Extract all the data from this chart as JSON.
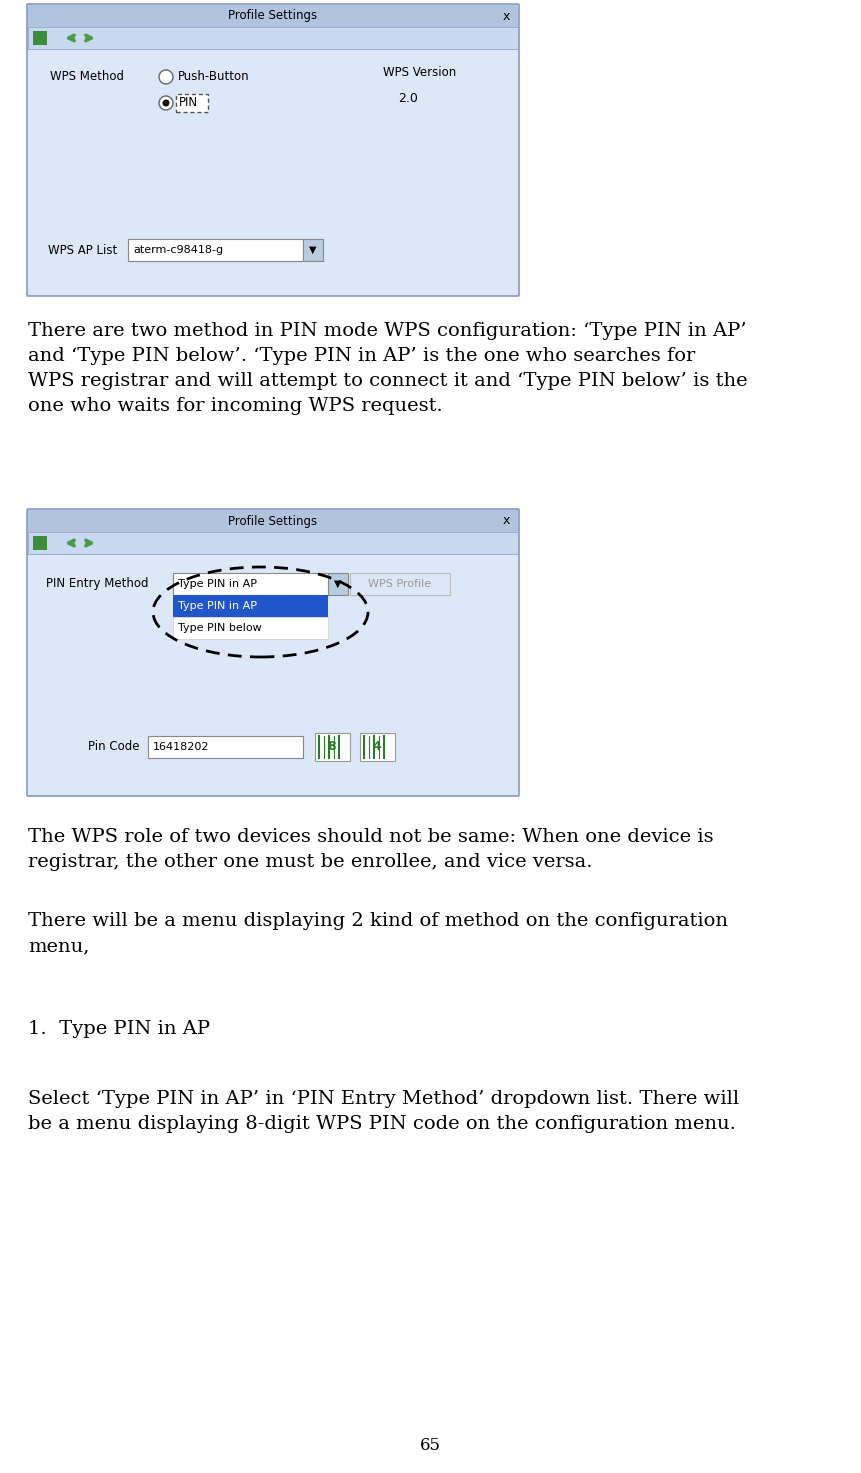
{
  "page_number": "65",
  "bg": "#ffffff",
  "title_bar_color": "#b0c4de",
  "toolbar_color": "#c8d8ee",
  "body_color": "#dce8f8",
  "border_color": "#8899bb",
  "dialog1": {
    "title": "Profile Settings",
    "wps_method_label": "WPS Method",
    "radio1_text": "Push-Button",
    "radio2_text": "PIN",
    "wps_version_label": "WPS Version",
    "wps_version_value": "2.0",
    "ap_list_label": "WPS AP List",
    "ap_list_value": "aterm-c98418-g"
  },
  "dialog2": {
    "title": "Profile Settings",
    "pin_entry_label": "PIN Entry Method",
    "dropdown_value": "Type PIN in AP",
    "option1": "Type PIN in AP",
    "option2": "Type PIN below",
    "wps_profile_label": "WPS Profile",
    "pin_code_label": "Pin Code",
    "pin_code_value": "16418202"
  },
  "para1": "There are two method in PIN mode WPS configuration: ‘Type PIN in AP’\nand ‘Type PIN below’. ‘Type PIN in AP’ is the one who searches for\nWPS registrar and will attempt to connect it and ‘Type PIN below’ is the\none who waits for incoming WPS request.",
  "para2": "The WPS role of two devices should not be same: When one device is\nregistrar, the other one must be enrollee, and vice versa.",
  "para3": "There will be a menu displaying 2 kind of method on the configuration\nmenu,",
  "para4": "1.  Type PIN in AP",
  "para5": "Select ‘Type PIN in AP’ in ‘PIN Entry Method’ dropdown list. There will\nbe a menu displaying 8-digit WPS PIN code on the configuration menu."
}
